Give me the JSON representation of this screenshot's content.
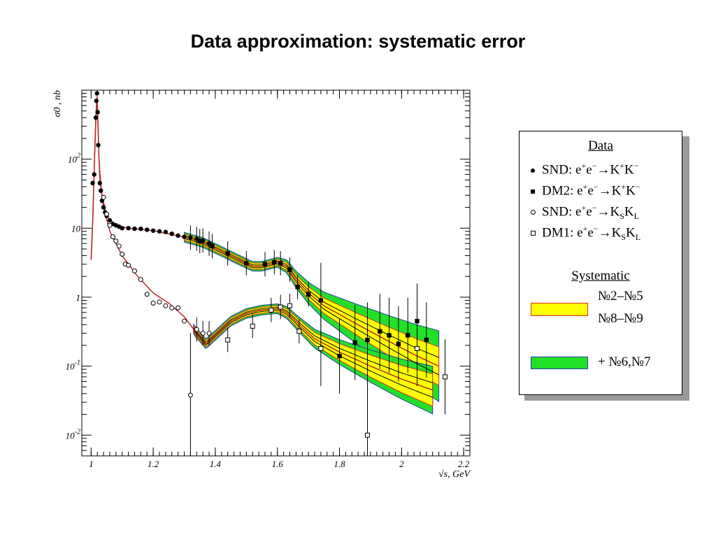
{
  "title": "Data approximation: systematic error",
  "colors": {
    "yellow_band": "#ffff00",
    "yellow_edge": "#d4302a",
    "green_band": "#22e029",
    "green_edge": "#1e3fa0",
    "fit_line": "#b42020",
    "data": "#000000"
  },
  "chart_data": {
    "type": "scatter",
    "title": "",
    "xlabel": "√s, GeV",
    "ylabel": "σ0 , nb",
    "xlim": [
      0.97,
      2.22
    ],
    "ylim": [
      0.005,
      1000
    ],
    "yscale": "log",
    "x_ticks": [
      {
        "v": 1.0,
        "label": "1"
      },
      {
        "v": 1.2,
        "label": "1.2"
      },
      {
        "v": 1.4,
        "label": "1.4"
      },
      {
        "v": 1.6,
        "label": "1.6"
      },
      {
        "v": 1.8,
        "label": "1.8"
      },
      {
        "v": 2.0,
        "label": "2"
      },
      {
        "v": 2.2,
        "label": "2.2"
      }
    ],
    "y_ticks": [
      {
        "v": 0.01,
        "label": "10",
        "exp": "-2"
      },
      {
        "v": 0.1,
        "label": "10",
        "exp": "-1"
      },
      {
        "v": 1,
        "label": "1",
        "exp": ""
      },
      {
        "v": 10,
        "label": "10",
        "exp": ""
      },
      {
        "v": 100,
        "label": "10",
        "exp": "2"
      }
    ],
    "series": [
      {
        "name": "SND: e+e−→K+K−",
        "marker": "dot",
        "points": [
          [
            1.005,
            45
          ],
          [
            1.01,
            60
          ],
          [
            1.015,
            400
          ],
          [
            1.017,
            700
          ],
          [
            1.019,
            900
          ],
          [
            1.021,
            480
          ],
          [
            1.023,
            160
          ],
          [
            1.028,
            45
          ],
          [
            1.031,
            35
          ],
          [
            1.035,
            25
          ],
          [
            1.04,
            20
          ],
          [
            1.045,
            17
          ],
          [
            1.05,
            15
          ],
          [
            1.06,
            13
          ],
          [
            1.07,
            11.5
          ],
          [
            1.08,
            11
          ],
          [
            1.09,
            10.5
          ],
          [
            1.1,
            10
          ],
          [
            1.12,
            10
          ],
          [
            1.14,
            9.8
          ],
          [
            1.16,
            9.8
          ],
          [
            1.18,
            9.5
          ],
          [
            1.2,
            9.2
          ],
          [
            1.22,
            9
          ],
          [
            1.24,
            8.8
          ],
          [
            1.26,
            8.3
          ],
          [
            1.28,
            7.8
          ],
          [
            1.3,
            7.5
          ],
          [
            1.32,
            7.3
          ],
          [
            1.34,
            7
          ],
          [
            1.36,
            6.6
          ],
          [
            1.38,
            6
          ]
        ]
      },
      {
        "name": "DM2: e+e−→K+K−",
        "marker": "square",
        "points": [
          [
            1.35,
            6.5
          ],
          [
            1.39,
            5.5
          ],
          [
            1.44,
            4.3
          ],
          [
            1.5,
            3.1
          ],
          [
            1.56,
            3.0
          ],
          [
            1.59,
            3.2
          ],
          [
            1.61,
            3.1
          ],
          [
            1.64,
            2.5
          ],
          [
            1.665,
            1.4
          ],
          [
            1.7,
            1.1
          ],
          [
            1.74,
            0.9
          ],
          [
            1.8,
            0.14
          ],
          [
            1.85,
            0.22
          ],
          [
            1.89,
            0.24
          ],
          [
            1.93,
            0.32
          ],
          [
            1.96,
            0.28
          ],
          [
            1.99,
            0.21
          ],
          [
            2.02,
            0.28
          ],
          [
            2.05,
            0.45
          ],
          [
            2.08,
            0.24
          ]
        ]
      },
      {
        "name": "SND: e+e−→KSKL",
        "marker": "circle-open",
        "points": [
          [
            1.04,
            28
          ],
          [
            1.05,
            16
          ],
          [
            1.06,
            11
          ],
          [
            1.07,
            7.5
          ],
          [
            1.08,
            6.5
          ],
          [
            1.09,
            5.5
          ],
          [
            1.1,
            4.2
          ],
          [
            1.11,
            3
          ],
          [
            1.12,
            2.9
          ],
          [
            1.14,
            2.4
          ],
          [
            1.16,
            1.8
          ],
          [
            1.18,
            1.1
          ],
          [
            1.2,
            0.82
          ],
          [
            1.22,
            0.85
          ],
          [
            1.24,
            0.75
          ],
          [
            1.26,
            0.7
          ],
          [
            1.28,
            0.7
          ],
          [
            1.3,
            0.45
          ],
          [
            1.32,
            0.038
          ],
          [
            1.34,
            0.34
          ],
          [
            1.36,
            0.3
          ],
          [
            1.38,
            0.3
          ]
        ]
      },
      {
        "name": "DM1: e+e−→KSKL",
        "marker": "square-open",
        "points": [
          [
            1.44,
            0.24
          ],
          [
            1.52,
            0.38
          ],
          [
            1.58,
            0.65
          ],
          [
            1.61,
            0.72
          ],
          [
            1.64,
            0.75
          ],
          [
            1.67,
            0.32
          ],
          [
            1.74,
            0.18
          ],
          [
            1.89,
            0.01
          ],
          [
            2.05,
            0.18
          ],
          [
            2.14,
            0.07
          ]
        ]
      }
    ],
    "legend": {
      "data_header": "Data",
      "entries": [
        {
          "marker": "dot",
          "prefix": "SND: e",
          "sup1": "+",
          "mid1": "e",
          "sup2": "−",
          "arrow": "→",
          "p1": "K",
          "s1": "+",
          "p2": "K",
          "s2": "−"
        },
        {
          "marker": "square",
          "prefix": "DM2: e",
          "sup1": "+",
          "mid1": "e",
          "sup2": "−",
          "arrow": "→",
          "p1": "K",
          "s1": "+",
          "p2": "K",
          "s2": "−"
        },
        {
          "marker": "circle-open",
          "prefix": "SND: e",
          "sup1": "+",
          "mid1": "e",
          "sup2": "−",
          "arrow": "→",
          "p1": "K",
          "s1": "S",
          "p2": "K",
          "s2": "L"
        },
        {
          "marker": "square-open",
          "prefix": "DM1: e",
          "sup1": "+",
          "mid1": "e",
          "sup2": "−",
          "arrow": "→",
          "p1": "K",
          "s1": "S",
          "p2": "K",
          "s2": "L"
        }
      ],
      "systematic_header": "Systematic",
      "yellow_line1": "№2–№5",
      "yellow_line2": "№8–№9",
      "green_label": "+ №6,№7"
    }
  }
}
